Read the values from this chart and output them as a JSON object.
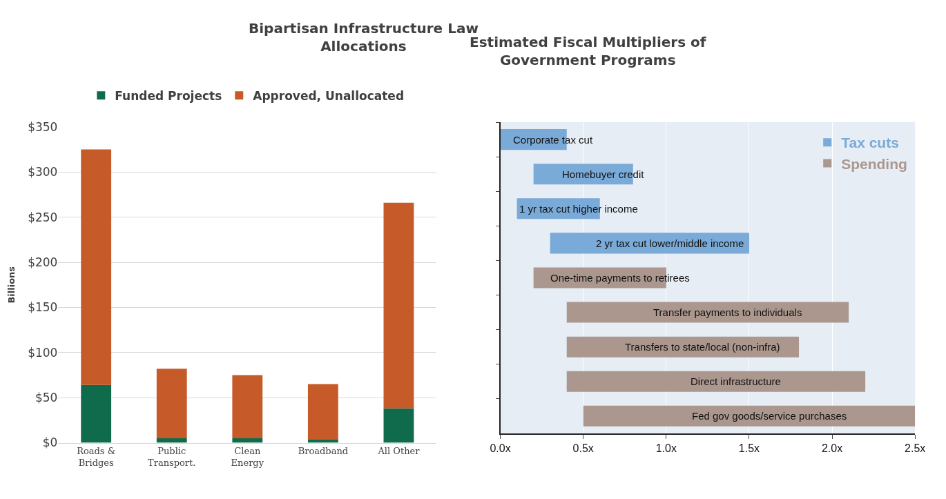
{
  "chart_data": [
    {
      "type": "bar",
      "title": "Bipartisan Infrastructure Law Allocations",
      "ylabel": "Billions",
      "stacked": true,
      "categories": [
        "Roads & Bridges",
        "Public Transport.",
        "Clean Energy",
        "Broadband",
        "All Other"
      ],
      "series": [
        {
          "name": "Funded Projects",
          "color": "#0f6b4c",
          "values": [
            64,
            5,
            5,
            4,
            38
          ]
        },
        {
          "name": "Approved, Unallocated",
          "color": "#c65a28",
          "values": [
            261,
            77,
            70,
            61,
            228
          ]
        }
      ],
      "ylim": [
        0,
        350
      ],
      "yticks": [
        {
          "value": 0,
          "label": "$0"
        },
        {
          "value": 50,
          "label": "$50"
        },
        {
          "value": 100,
          "label": "$100"
        },
        {
          "value": 150,
          "label": "$150"
        },
        {
          "value": 200,
          "label": "$200"
        },
        {
          "value": 250,
          "label": "$250"
        },
        {
          "value": 300,
          "label": "$300"
        },
        {
          "value": 350,
          "label": "$350"
        }
      ],
      "grid": "y",
      "legend": "top"
    },
    {
      "type": "bar",
      "title": "Estimated Fiscal Multipliers of Government Programs",
      "orientation": "horizontal",
      "tick_labels": "x",
      "categories": [
        "Corporate tax cut",
        "Homebuyer credit",
        "1 yr tax cut higher income",
        "2 yr tax cut lower/middle income",
        "One-time payments to retirees",
        "Transfer payments to individuals",
        "Transfers to state/local (non-infra)",
        "Direct infrastructure",
        "Fed gov goods/service purchases"
      ],
      "series": [
        {
          "name": "Tax cuts",
          "color": "#7aaad8",
          "base": [
            0,
            0.2,
            0.1,
            0.3,
            null,
            null,
            null,
            null,
            null
          ],
          "values": [
            0.4,
            0.6,
            0.5,
            1.2,
            null,
            null,
            null,
            null,
            null
          ]
        },
        {
          "name": "Spending",
          "color": "#ab978d",
          "base": [
            null,
            null,
            null,
            null,
            0.2,
            0.4,
            0.4,
            0.4,
            0.5
          ],
          "values": [
            null,
            null,
            null,
            null,
            0.8,
            1.7,
            1.4,
            1.8,
            2.0
          ]
        }
      ],
      "xlim": [
        0,
        2.5
      ],
      "xticks": [
        {
          "value": 0,
          "label": "0.0x"
        },
        {
          "value": 0.5,
          "label": "0.5x"
        },
        {
          "value": 1.0,
          "label": "1.0x"
        },
        {
          "value": 1.5,
          "label": "1.5x"
        },
        {
          "value": 2.0,
          "label": "2.0x"
        },
        {
          "value": 2.5,
          "label": "2.5x"
        }
      ],
      "grid": "x",
      "legend": "top right"
    }
  ]
}
